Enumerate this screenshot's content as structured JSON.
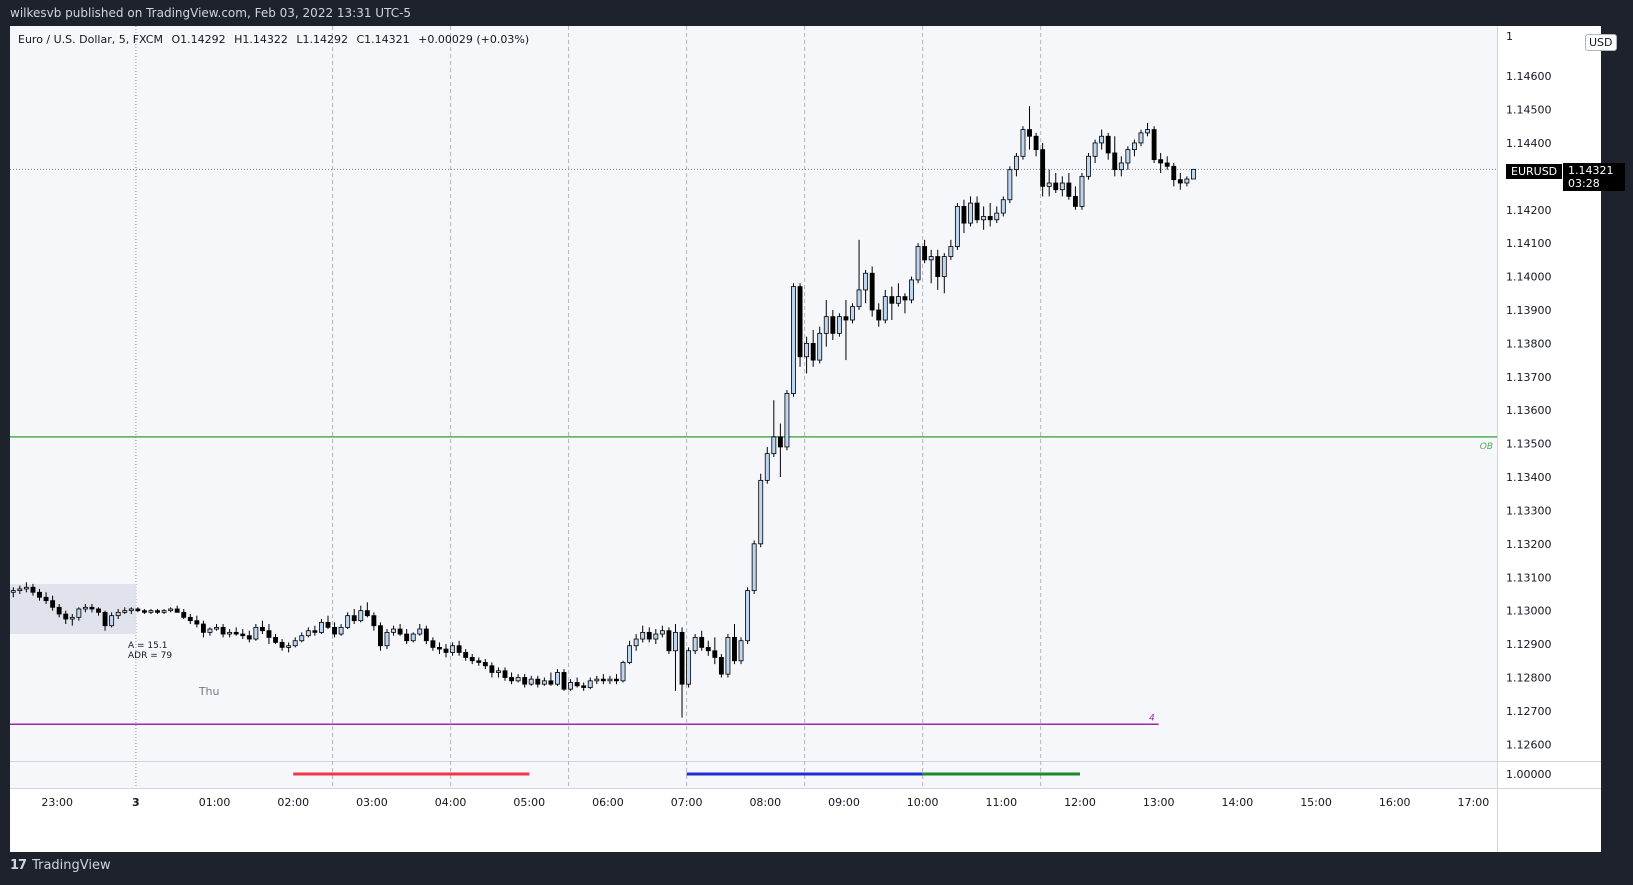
{
  "header": {
    "published": "wilkesvb published on TradingView.com, Feb 03, 2022 13:31 UTC-5"
  },
  "footer": {
    "brand": "TradingView",
    "mark": "17"
  },
  "legend": {
    "symbol": "Euro / U.S. Dollar, 5, FXCM",
    "open": "O1.14292",
    "high": "H1.14322",
    "low": "L1.14292",
    "close": "C1.14321",
    "change": "+0.00029 (+0.03%)"
  },
  "price_axis": {
    "currency": "USD",
    "symbol_tag": "EURUSD",
    "last_price": "1.14321",
    "countdown": "03:28",
    "top_partial_label": "1"
  },
  "annotations": {
    "range_label": "A = 15.1",
    "adr_label": "ADR = 79",
    "day_label": "Thu",
    "ob_label": "OB",
    "level_label": "4"
  },
  "colors": {
    "up_candle": "#bfd6f2",
    "down_candle": "#000000",
    "wick": "#000000",
    "ob_line": "#4caf50",
    "level_line": "#9c27b0",
    "session_red": "#f23645",
    "session_blue": "#1f2ed1",
    "session_green": "#1b8a2e",
    "background": "#f6f7fb",
    "frame": "#1e222d"
  },
  "chart_data": {
    "type": "candlestick",
    "title": "Euro / U.S. Dollar, 5, FXCM",
    "ylim": [
      1.1255,
      1.1475
    ],
    "y_ticks": [
      "1.14600",
      "1.14500",
      "1.14400",
      "1.14200",
      "1.14100",
      "1.14000",
      "1.13900",
      "1.13800",
      "1.13700",
      "1.13600",
      "1.13500",
      "1.13400",
      "1.13300",
      "1.13200",
      "1.13100",
      "1.13000",
      "1.12900",
      "1.12800",
      "1.12700",
      "1.12600"
    ],
    "y_tick_values": [
      1.146,
      1.145,
      1.144,
      1.142,
      1.141,
      1.14,
      1.139,
      1.138,
      1.137,
      1.136,
      1.135,
      1.134,
      1.133,
      1.132,
      1.131,
      1.13,
      1.129,
      1.128,
      1.127,
      1.126
    ],
    "x_ticks": [
      "23:00",
      "3",
      "01:00",
      "02:00",
      "03:00",
      "04:00",
      "05:00",
      "06:00",
      "07:00",
      "08:00",
      "09:00",
      "10:00",
      "11:00",
      "12:00",
      "13:00",
      "14:00",
      "15:00",
      "16:00",
      "17:00"
    ],
    "x_tick_hours": [
      -1,
      0,
      1,
      2,
      3,
      4,
      5,
      6,
      7,
      8,
      9,
      10,
      11,
      12,
      13,
      14,
      15,
      16,
      17
    ],
    "vertical_gridline_hours": [
      2.5,
      4,
      5.5,
      7,
      8.5,
      10,
      11.5
    ],
    "start_hour": -1.6,
    "end_hour": 17.3,
    "bar_minutes": 5,
    "ob_level": 1.1352,
    "level_4": 1.1266,
    "last_price": 1.14321,
    "oscillator": {
      "label": "1.00000",
      "value": 1.0
    },
    "sessions": [
      {
        "color": "red",
        "start": 2,
        "end": 5
      },
      {
        "color": "blue",
        "start": 7,
        "end": 10
      },
      {
        "color": "green",
        "start": 10,
        "end": 12
      }
    ],
    "range_box": {
      "start": -1.6,
      "end": 0,
      "high": 1.1308,
      "low": 1.1293
    },
    "ohlc": [
      [
        1.13055,
        1.1307,
        1.1304,
        1.1306
      ],
      [
        1.1306,
        1.13075,
        1.1305,
        1.13065
      ],
      [
        1.13065,
        1.13085,
        1.13055,
        1.1307
      ],
      [
        1.1307,
        1.1308,
        1.13045,
        1.13055
      ],
      [
        1.13055,
        1.13065,
        1.1303,
        1.1304
      ],
      [
        1.1304,
        1.13055,
        1.1302,
        1.1303
      ],
      [
        1.1303,
        1.13045,
        1.13,
        1.1301
      ],
      [
        1.1301,
        1.1302,
        1.1298,
        1.1299
      ],
      [
        1.1299,
        1.13,
        1.1296,
        1.12975
      ],
      [
        1.12975,
        1.1299,
        1.12955,
        1.1298
      ],
      [
        1.1298,
        1.1301,
        1.1297,
        1.13005
      ],
      [
        1.13005,
        1.1302,
        1.12995,
        1.1301
      ],
      [
        1.1301,
        1.1302,
        1.12995,
        1.13005
      ],
      [
        1.13005,
        1.1301,
        1.12985,
        1.12995
      ],
      [
        1.12995,
        1.13,
        1.1294,
        1.12955
      ],
      [
        1.12955,
        1.12995,
        1.1295,
        1.12985
      ],
      [
        1.12985,
        1.13005,
        1.12975,
        1.12995
      ],
      [
        1.12995,
        1.1301,
        1.1299,
        1.13
      ],
      [
        1.13,
        1.1301,
        1.1299,
        1.13005
      ],
      [
        1.13005,
        1.1301,
        1.12995,
        1.13
      ],
      [
        1.13,
        1.13005,
        1.1299,
        1.12995
      ],
      [
        1.12995,
        1.13005,
        1.1299,
        1.13
      ],
      [
        1.13,
        1.13005,
        1.1299,
        1.12995
      ],
      [
        1.12995,
        1.13005,
        1.1299,
        1.13
      ],
      [
        1.13,
        1.1301,
        1.12995,
        1.13005
      ],
      [
        1.13005,
        1.13015,
        1.13,
        1.12995
      ],
      [
        1.12995,
        1.13005,
        1.12975,
        1.1298
      ],
      [
        1.1298,
        1.1299,
        1.1296,
        1.1297
      ],
      [
        1.1297,
        1.12985,
        1.1295,
        1.1296
      ],
      [
        1.1296,
        1.1297,
        1.1292,
        1.12935
      ],
      [
        1.12935,
        1.1295,
        1.12925,
        1.12945
      ],
      [
        1.12945,
        1.1296,
        1.1294,
        1.1295
      ],
      [
        1.1295,
        1.1296,
        1.1292,
        1.1293
      ],
      [
        1.1293,
        1.12945,
        1.1292,
        1.12935
      ],
      [
        1.12935,
        1.1295,
        1.12925,
        1.1293
      ],
      [
        1.1293,
        1.12945,
        1.12915,
        1.12925
      ],
      [
        1.12925,
        1.1294,
        1.12905,
        1.12915
      ],
      [
        1.12915,
        1.1296,
        1.1291,
        1.1295
      ],
      [
        1.1295,
        1.1297,
        1.1293,
        1.1294
      ],
      [
        1.1294,
        1.1296,
        1.129,
        1.1292
      ],
      [
        1.1292,
        1.1293,
        1.129,
        1.12905
      ],
      [
        1.12905,
        1.12915,
        1.1288,
        1.1289
      ],
      [
        1.1289,
        1.12905,
        1.12875,
        1.12895
      ],
      [
        1.12895,
        1.1292,
        1.1289,
        1.1291
      ],
      [
        1.1291,
        1.12935,
        1.12905,
        1.12925
      ],
      [
        1.12925,
        1.1295,
        1.1292,
        1.1294
      ],
      [
        1.1294,
        1.12955,
        1.12925,
        1.12935
      ],
      [
        1.12935,
        1.12975,
        1.1293,
        1.12965
      ],
      [
        1.12965,
        1.12985,
        1.12945,
        1.1295
      ],
      [
        1.1295,
        1.12965,
        1.1292,
        1.1293
      ],
      [
        1.1293,
        1.1296,
        1.12925,
        1.1295
      ],
      [
        1.1295,
        1.12995,
        1.12945,
        1.12985
      ],
      [
        1.12985,
        1.13005,
        1.1296,
        1.1297
      ],
      [
        1.1297,
        1.13015,
        1.12965,
        1.13
      ],
      [
        1.13,
        1.13025,
        1.1298,
        1.12985
      ],
      [
        1.12985,
        1.12995,
        1.1294,
        1.12955
      ],
      [
        1.12955,
        1.12965,
        1.1288,
        1.12895
      ],
      [
        1.12895,
        1.12945,
        1.12885,
        1.12935
      ],
      [
        1.12935,
        1.12955,
        1.12925,
        1.12945
      ],
      [
        1.12945,
        1.1296,
        1.12925,
        1.1293
      ],
      [
        1.1293,
        1.12945,
        1.129,
        1.1291
      ],
      [
        1.1291,
        1.12935,
        1.12905,
        1.1293
      ],
      [
        1.1293,
        1.1296,
        1.12925,
        1.12945
      ],
      [
        1.12945,
        1.12955,
        1.129,
        1.1291
      ],
      [
        1.1291,
        1.1292,
        1.1288,
        1.1289
      ],
      [
        1.1289,
        1.12905,
        1.1287,
        1.12885
      ],
      [
        1.12885,
        1.129,
        1.1286,
        1.12875
      ],
      [
        1.12875,
        1.12905,
        1.12865,
        1.12895
      ],
      [
        1.12895,
        1.1291,
        1.12865,
        1.12875
      ],
      [
        1.12875,
        1.12885,
        1.1285,
        1.1286
      ],
      [
        1.1286,
        1.1287,
        1.1284,
        1.1285
      ],
      [
        1.1285,
        1.1286,
        1.12835,
        1.12845
      ],
      [
        1.12845,
        1.12855,
        1.12825,
        1.12835
      ],
      [
        1.12835,
        1.12845,
        1.128,
        1.12815
      ],
      [
        1.12815,
        1.1283,
        1.128,
        1.1282
      ],
      [
        1.1282,
        1.1283,
        1.1279,
        1.128
      ],
      [
        1.128,
        1.12815,
        1.1278,
        1.1279
      ],
      [
        1.1279,
        1.1281,
        1.12785,
        1.128
      ],
      [
        1.128,
        1.1281,
        1.1277,
        1.1278
      ],
      [
        1.1278,
        1.12805,
        1.12775,
        1.12795
      ],
      [
        1.12795,
        1.12805,
        1.1277,
        1.1278
      ],
      [
        1.1278,
        1.128,
        1.12775,
        1.1279
      ],
      [
        1.1279,
        1.12815,
        1.12775,
        1.1278
      ],
      [
        1.1278,
        1.12825,
        1.12775,
        1.12815
      ],
      [
        1.12815,
        1.12825,
        1.1276,
        1.12765
      ],
      [
        1.12765,
        1.12795,
        1.1276,
        1.12785
      ],
      [
        1.12785,
        1.128,
        1.1277,
        1.12775
      ],
      [
        1.12775,
        1.12785,
        1.1276,
        1.1277
      ],
      [
        1.1277,
        1.128,
        1.12765,
        1.1279
      ],
      [
        1.1279,
        1.12805,
        1.1278,
        1.12795
      ],
      [
        1.12795,
        1.1281,
        1.1278,
        1.1279
      ],
      [
        1.1279,
        1.12805,
        1.1278,
        1.12795
      ],
      [
        1.12795,
        1.1281,
        1.1278,
        1.1279
      ],
      [
        1.1279,
        1.1285,
        1.12785,
        1.12845
      ],
      [
        1.12845,
        1.1291,
        1.1284,
        1.12895
      ],
      [
        1.12895,
        1.1293,
        1.1288,
        1.12915
      ],
      [
        1.12915,
        1.12955,
        1.12905,
        1.12935
      ],
      [
        1.12935,
        1.1295,
        1.12905,
        1.12915
      ],
      [
        1.12915,
        1.12945,
        1.129,
        1.1293
      ],
      [
        1.1293,
        1.12955,
        1.1292,
        1.1294
      ],
      [
        1.1294,
        1.1295,
        1.1287,
        1.1288
      ],
      [
        1.1288,
        1.1296,
        1.1276,
        1.12935
      ],
      [
        1.12935,
        1.1295,
        1.1268,
        1.1278
      ],
      [
        1.1278,
        1.1289,
        1.1277,
        1.1288
      ],
      [
        1.1288,
        1.1293,
        1.1287,
        1.1292
      ],
      [
        1.1292,
        1.1294,
        1.1288,
        1.1289
      ],
      [
        1.1289,
        1.1291,
        1.12865,
        1.1288
      ],
      [
        1.1288,
        1.1292,
        1.1284,
        1.1286
      ],
      [
        1.1286,
        1.1287,
        1.128,
        1.1281
      ],
      [
        1.1281,
        1.1293,
        1.128,
        1.1292
      ],
      [
        1.1292,
        1.1296,
        1.1284,
        1.1285
      ],
      [
        1.1285,
        1.1292,
        1.1284,
        1.1291
      ],
      [
        1.1291,
        1.1307,
        1.129,
        1.1306
      ],
      [
        1.1306,
        1.1321,
        1.1305,
        1.132
      ],
      [
        1.132,
        1.1341,
        1.1319,
        1.1339
      ],
      [
        1.1339,
        1.1349,
        1.1338,
        1.1347
      ],
      [
        1.1347,
        1.1363,
        1.1346,
        1.1352
      ],
      [
        1.1352,
        1.1356,
        1.134,
        1.1349
      ],
      [
        1.1349,
        1.1366,
        1.1348,
        1.1365
      ],
      [
        1.1365,
        1.1398,
        1.1364,
        1.1397
      ],
      [
        1.1397,
        1.1398,
        1.1373,
        1.1376
      ],
      [
        1.1376,
        1.1382,
        1.1371,
        1.138
      ],
      [
        1.138,
        1.1384,
        1.1373,
        1.1375
      ],
      [
        1.1375,
        1.1385,
        1.1374,
        1.1383
      ],
      [
        1.1383,
        1.1393,
        1.1379,
        1.1388
      ],
      [
        1.1388,
        1.139,
        1.1381,
        1.1383
      ],
      [
        1.1383,
        1.1389,
        1.1382,
        1.1388
      ],
      [
        1.1388,
        1.1393,
        1.1375,
        1.1387
      ],
      [
        1.1387,
        1.1392,
        1.1386,
        1.1391
      ],
      [
        1.1391,
        1.1411,
        1.139,
        1.1396
      ],
      [
        1.1396,
        1.1402,
        1.1392,
        1.1401
      ],
      [
        1.1401,
        1.1403,
        1.1388,
        1.139
      ],
      [
        1.139,
        1.1392,
        1.1385,
        1.1387
      ],
      [
        1.1387,
        1.1396,
        1.1386,
        1.1394
      ],
      [
        1.1394,
        1.1397,
        1.1387,
        1.1392
      ],
      [
        1.1392,
        1.1398,
        1.1391,
        1.1394
      ],
      [
        1.1394,
        1.1395,
        1.1389,
        1.1393
      ],
      [
        1.1393,
        1.14,
        1.1392,
        1.1399
      ],
      [
        1.1399,
        1.141,
        1.1398,
        1.1409
      ],
      [
        1.1409,
        1.1411,
        1.1404,
        1.1405
      ],
      [
        1.1405,
        1.1408,
        1.1398,
        1.1406
      ],
      [
        1.1406,
        1.1408,
        1.1396,
        1.14
      ],
      [
        1.14,
        1.1407,
        1.1395,
        1.1406
      ],
      [
        1.1406,
        1.1411,
        1.1405,
        1.1409
      ],
      [
        1.1409,
        1.1422,
        1.1408,
        1.1421
      ],
      [
        1.1421,
        1.1423,
        1.1413,
        1.1416
      ],
      [
        1.1416,
        1.1424,
        1.1415,
        1.1422
      ],
      [
        1.1422,
        1.1424,
        1.1416,
        1.1417
      ],
      [
        1.1417,
        1.1421,
        1.1414,
        1.1418
      ],
      [
        1.1418,
        1.1422,
        1.1415,
        1.1417
      ],
      [
        1.1417,
        1.1421,
        1.1416,
        1.1419
      ],
      [
        1.1419,
        1.1424,
        1.1418,
        1.1423
      ],
      [
        1.1423,
        1.1433,
        1.1422,
        1.1432
      ],
      [
        1.1432,
        1.1437,
        1.143,
        1.1436
      ],
      [
        1.1436,
        1.1445,
        1.1435,
        1.1444
      ],
      [
        1.1444,
        1.1451,
        1.1438,
        1.1442
      ],
      [
        1.1442,
        1.1443,
        1.1436,
        1.1438
      ],
      [
        1.1438,
        1.144,
        1.1424,
        1.1427
      ],
      [
        1.1427,
        1.1432,
        1.1424,
        1.1428
      ],
      [
        1.1428,
        1.1431,
        1.1425,
        1.1426
      ],
      [
        1.1426,
        1.143,
        1.1424,
        1.1428
      ],
      [
        1.1428,
        1.1431,
        1.1423,
        1.1424
      ],
      [
        1.1424,
        1.1427,
        1.142,
        1.1421
      ],
      [
        1.1421,
        1.1431,
        1.142,
        1.143
      ],
      [
        1.143,
        1.1437,
        1.1429,
        1.1436
      ],
      [
        1.1436,
        1.1441,
        1.1434,
        1.144
      ],
      [
        1.144,
        1.1444,
        1.1438,
        1.1442
      ],
      [
        1.1442,
        1.1443,
        1.1435,
        1.1437
      ],
      [
        1.1437,
        1.1442,
        1.143,
        1.1432
      ],
      [
        1.1432,
        1.1436,
        1.143,
        1.1434
      ],
      [
        1.1434,
        1.1439,
        1.1432,
        1.1438
      ],
      [
        1.1438,
        1.1441,
        1.1436,
        1.144
      ],
      [
        1.144,
        1.1444,
        1.1439,
        1.1443
      ],
      [
        1.1443,
        1.1446,
        1.1442,
        1.1444
      ],
      [
        1.1444,
        1.1445,
        1.1434,
        1.1435
      ],
      [
        1.1435,
        1.1437,
        1.1431,
        1.1434
      ],
      [
        1.1434,
        1.1436,
        1.1432,
        1.1433
      ],
      [
        1.1433,
        1.1434,
        1.1427,
        1.1429
      ],
      [
        1.1429,
        1.1431,
        1.1426,
        1.1428
      ],
      [
        1.1428,
        1.143,
        1.1427,
        1.14292
      ],
      [
        1.14292,
        1.14322,
        1.14292,
        1.14321
      ]
    ]
  }
}
